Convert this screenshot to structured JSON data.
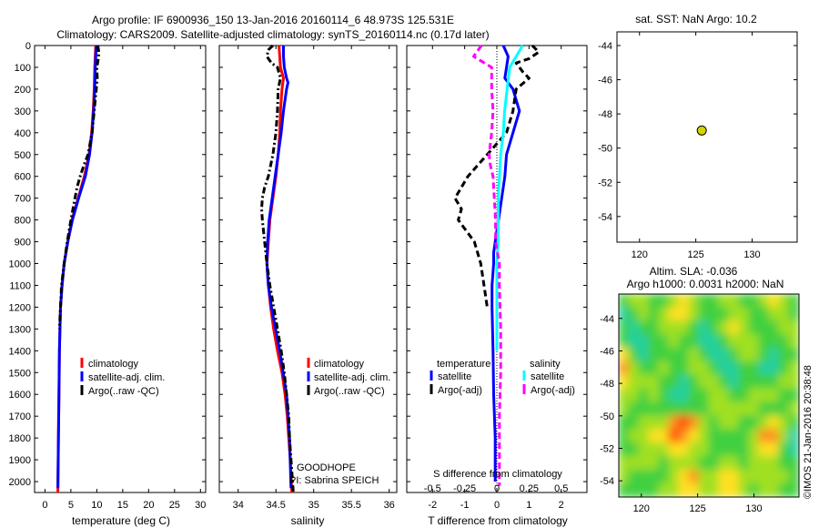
{
  "header": {
    "title_line1": "Argo profile: IF 6900936_150 13-Jan-2016 20160114_6 48.973S 125.531E",
    "title_line2": "Climatology: CARS2009. Satellite-adjusted climatology: synTS_20160114.nc (0.17d later)"
  },
  "side": {
    "sst_title": "sat. SST: NaN Argo: 10.2",
    "sla_line1": "Altim. SLA: -0.036",
    "sla_line2": "Argo h1000: 0.0031 h2000: NaN",
    "credit": "©IMOS 21-Jan-2016 20:38:48"
  },
  "annot": {
    "goodhope": "GOODHOPE",
    "pi": "PI: Sabrina SPEICH",
    "s_diff": "S difference from climatology"
  },
  "colors": {
    "climatology": "#ff0000",
    "satellite": "#0000ff",
    "argo": "#000000",
    "sal_sat": "#00ffff",
    "sal_argo": "#ff00ff"
  },
  "chart_data": [
    {
      "type": "line",
      "xlabel": "temperature (deg C)",
      "ylabel": "",
      "xlim": [
        -2,
        31
      ],
      "ylim": [
        2050,
        0
      ],
      "xticks": [
        0,
        5,
        10,
        15,
        20,
        25,
        30
      ],
      "yticks": [
        0,
        100,
        200,
        300,
        400,
        500,
        600,
        700,
        800,
        900,
        1000,
        1100,
        1200,
        1300,
        1400,
        1500,
        1600,
        1700,
        1800,
        1900,
        2000
      ],
      "legend": [
        "climatology",
        "satellite-adj. clim.",
        "Argo(..raw -QC)"
      ],
      "legend_location": "lower-center",
      "series": [
        {
          "name": "climatology",
          "color": "#ff0000",
          "style": "solid",
          "depth": [
            0,
            100,
            200,
            300,
            400,
            500,
            600,
            700,
            800,
            900,
            1000,
            1100,
            1200,
            1400,
            1600,
            1800,
            2050
          ],
          "values": [
            9.8,
            9.6,
            9.5,
            9.3,
            9.0,
            8.5,
            7.6,
            6.4,
            5.2,
            4.4,
            3.7,
            3.3,
            3.0,
            2.8,
            2.7,
            2.6,
            2.5
          ]
        },
        {
          "name": "satellite-adj. clim.",
          "color": "#0000ff",
          "style": "solid",
          "depth": [
            0,
            100,
            200,
            300,
            400,
            500,
            600,
            700,
            800,
            900,
            1000,
            1100,
            1200,
            1400,
            1600,
            1800,
            2030
          ],
          "values": [
            9.9,
            9.7,
            9.6,
            9.4,
            9.1,
            8.6,
            7.8,
            6.5,
            5.3,
            4.4,
            3.7,
            3.3,
            3.0,
            2.8,
            2.7,
            2.6,
            2.5
          ]
        },
        {
          "name": "Argo(..raw -QC)",
          "color": "#000000",
          "style": "dashdot",
          "depth": [
            0,
            30,
            60,
            100,
            150,
            200,
            300,
            400,
            500,
            550,
            600,
            650,
            700,
            800,
            900,
            1000,
            1100,
            1200,
            1300
          ],
          "values": [
            10.2,
            10.4,
            10.3,
            10.0,
            10.1,
            9.9,
            9.5,
            9.1,
            8.3,
            7.5,
            6.8,
            6.2,
            5.8,
            5.0,
            4.3,
            3.7,
            3.2,
            3.0,
            2.8
          ]
        }
      ]
    },
    {
      "type": "line",
      "xlabel": "salinity",
      "ylabel": "",
      "xlim": [
        33.75,
        36.1
      ],
      "ylim": [
        2050,
        0
      ],
      "xticks": [
        34,
        34.5,
        35,
        35.5,
        36
      ],
      "legend": [
        "climatology",
        "satellite-adj. clim.",
        "Argo(..raw -QC)"
      ],
      "legend_location": "lower-right",
      "series": [
        {
          "name": "climatology",
          "color": "#ff0000",
          "style": "solid",
          "depth": [
            0,
            50,
            100,
            150,
            200,
            300,
            400,
            500,
            600,
            700,
            800,
            900,
            1000,
            1100,
            1200,
            1300,
            1400,
            1500,
            1600,
            1700,
            1800,
            1900,
            2050
          ],
          "values": [
            34.54,
            34.55,
            34.56,
            34.6,
            34.58,
            34.56,
            34.55,
            34.53,
            34.5,
            34.46,
            34.42,
            34.4,
            34.38,
            34.4,
            34.43,
            34.47,
            34.52,
            34.58,
            34.62,
            34.65,
            34.67,
            34.69,
            34.71
          ]
        },
        {
          "name": "satellite-adj. clim.",
          "color": "#0000ff",
          "style": "solid",
          "depth": [
            0,
            50,
            100,
            150,
            170,
            200,
            300,
            400,
            500,
            600,
            700,
            800,
            900,
            1000,
            1100,
            1200,
            1400,
            1600,
            1800,
            2030
          ],
          "values": [
            34.6,
            34.6,
            34.61,
            34.64,
            34.66,
            34.64,
            34.6,
            34.57,
            34.53,
            34.49,
            34.45,
            34.41,
            34.39,
            34.38,
            34.4,
            34.44,
            34.55,
            34.64,
            34.68,
            34.7
          ]
        },
        {
          "name": "Argo(..raw -QC)",
          "color": "#000000",
          "style": "dashdot",
          "depth": [
            0,
            20,
            50,
            80,
            100,
            150,
            200,
            300,
            400,
            500,
            600,
            650,
            700,
            750,
            800,
            900,
            1000,
            1100,
            1200,
            1300,
            1400,
            1500,
            1600,
            1700,
            1800,
            1900,
            2050
          ],
          "values": [
            34.46,
            34.4,
            34.38,
            34.44,
            34.52,
            34.56,
            34.53,
            34.52,
            34.5,
            34.46,
            34.4,
            34.35,
            34.32,
            34.31,
            34.32,
            34.35,
            34.38,
            34.42,
            34.47,
            34.52,
            34.57,
            34.61,
            34.64,
            34.67,
            34.68,
            34.7,
            34.73
          ]
        }
      ]
    },
    {
      "type": "line",
      "xlabel": "T difference from climatology",
      "ylabel": "",
      "xlim": [
        -2.8,
        2.8
      ],
      "ylim": [
        2050,
        0
      ],
      "xticks": [
        -2,
        -1,
        0,
        1,
        2
      ],
      "top_axis_label": "S difference from climatology",
      "top_axis_ticks": [
        "-0.5",
        "-0.25",
        "0",
        "0.25",
        "0.5"
      ],
      "legend_title_left": "temperature",
      "legend_title_right": "salinity",
      "legend": [
        "satellite",
        "Argo(-adj)",
        "satellite",
        "Argo(-adj)"
      ],
      "legend_location": "lower-center",
      "series": [
        {
          "name": "satellite",
          "group": "temperature",
          "color": "#0000ff",
          "style": "solid",
          "depth": [
            0,
            50,
            100,
            150,
            200,
            300,
            400,
            500,
            600,
            700,
            800,
            900,
            950,
            1000,
            1100,
            1200,
            1400,
            1600,
            1800,
            2000
          ],
          "values": [
            0.2,
            0.35,
            0.3,
            0.25,
            0.5,
            0.7,
            0.5,
            0.3,
            0.25,
            0.15,
            0.05,
            -0.05,
            -0.1,
            -0.1,
            -0.15,
            -0.15,
            -0.12,
            -0.1,
            -0.05,
            -0.05
          ]
        },
        {
          "name": "Argo(-adj)",
          "group": "temperature",
          "color": "#000000",
          "style": "dashed",
          "depth": [
            0,
            30,
            60,
            80,
            120,
            150,
            200,
            300,
            400,
            500,
            550,
            600,
            650,
            700,
            750,
            800,
            900,
            1000,
            1100,
            1200
          ],
          "values": [
            1.1,
            1.3,
            1.0,
            0.6,
            0.8,
            1.0,
            0.6,
            0.5,
            0.3,
            -0.3,
            -0.6,
            -0.9,
            -1.1,
            -1.3,
            -1.1,
            -1.2,
            -0.7,
            -0.5,
            -0.4,
            -0.3
          ]
        },
        {
          "name": "satellite",
          "group": "salinity",
          "color": "#00ffff",
          "style": "solid",
          "depth": [
            0,
            50,
            100,
            200,
            300,
            400,
            500,
            600,
            700,
            800,
            900,
            1000,
            1100,
            1200,
            1400
          ],
          "values": [
            0.2,
            0.15,
            0.1,
            0.08,
            0.06,
            0.05,
            0.03,
            0.02,
            0.01,
            0.01,
            0.01,
            0.0,
            0.0,
            0.0,
            0.0
          ]
        },
        {
          "name": "Argo(-adj)",
          "group": "salinity",
          "color": "#ff00ff",
          "style": "dashed",
          "depth": [
            0,
            50,
            100,
            200,
            300,
            400,
            500,
            550,
            600,
            700,
            800,
            900,
            1000,
            1100,
            1300,
            1500,
            1700,
            1900,
            2020
          ],
          "values": [
            -0.12,
            -0.18,
            -0.04,
            -0.04,
            -0.03,
            -0.04,
            -0.06,
            -0.05,
            -0.03,
            -0.02,
            -0.01,
            -0.01,
            0.02,
            0.02,
            0.03,
            0.03,
            0.02,
            0.02,
            0.02
          ]
        }
      ]
    },
    {
      "type": "scatter",
      "title": "sat. SST: NaN Argo: 10.2",
      "xlim": [
        118,
        134
      ],
      "ylim": [
        -55.5,
        -43.2
      ],
      "xticks": [
        120,
        125,
        130
      ],
      "yticks": [
        -44,
        -46,
        -48,
        -50,
        -52,
        -54
      ],
      "points": [
        {
          "x": 125.53,
          "y": -48.97,
          "color": "#d4d400"
        }
      ]
    },
    {
      "type": "heatmap",
      "title": "Argo h1000: 0.0031 h2000: NaN",
      "xlim": [
        118,
        134
      ],
      "ylim": [
        -55,
        -42.5
      ],
      "xticks": [
        120,
        125,
        130
      ],
      "yticks": [
        -44,
        -46,
        -48,
        -50,
        -52,
        -54
      ],
      "colormap": [
        "#00c0e0",
        "#20d0a0",
        "#40d040",
        "#a0e020",
        "#ffe020",
        "#ff9020",
        "#ff4000"
      ],
      "field": [
        [
          2,
          3,
          3,
          2,
          2,
          3,
          4,
          3,
          2,
          2,
          3,
          3,
          2,
          2,
          3,
          4,
          3,
          2
        ],
        [
          1,
          2,
          3,
          2,
          3,
          4,
          4,
          3,
          2,
          2,
          2,
          3,
          3,
          2,
          2,
          3,
          3,
          2
        ],
        [
          2,
          1,
          2,
          2,
          3,
          3,
          3,
          2,
          1,
          2,
          3,
          4,
          3,
          2,
          2,
          2,
          3,
          3
        ],
        [
          2,
          1,
          1,
          2,
          2,
          3,
          2,
          2,
          1,
          1,
          2,
          3,
          3,
          3,
          2,
          2,
          2,
          3
        ],
        [
          4,
          2,
          1,
          2,
          2,
          2,
          2,
          3,
          2,
          1,
          1,
          2,
          3,
          3,
          2,
          1,
          2,
          2
        ],
        [
          5,
          3,
          2,
          2,
          3,
          2,
          2,
          3,
          3,
          2,
          1,
          1,
          2,
          2,
          1,
          1,
          2,
          3
        ],
        [
          4,
          3,
          3,
          3,
          2,
          2,
          1,
          2,
          3,
          3,
          2,
          1,
          2,
          2,
          2,
          2,
          3,
          3
        ],
        [
          3,
          3,
          2,
          3,
          2,
          1,
          1,
          2,
          2,
          3,
          3,
          2,
          2,
          3,
          3,
          3,
          2,
          2
        ],
        [
          3,
          2,
          2,
          2,
          2,
          2,
          2,
          2,
          2,
          3,
          3,
          3,
          3,
          3,
          2,
          2,
          2,
          3
        ],
        [
          2,
          2,
          3,
          3,
          3,
          5,
          6,
          5,
          3,
          2,
          3,
          3,
          2,
          2,
          3,
          4,
          3,
          2
        ],
        [
          2,
          3,
          3,
          4,
          4,
          6,
          5,
          4,
          3,
          2,
          2,
          2,
          2,
          3,
          5,
          5,
          3,
          1
        ],
        [
          2,
          2,
          3,
          3,
          3,
          4,
          4,
          3,
          3,
          2,
          2,
          2,
          2,
          3,
          4,
          4,
          2,
          1
        ],
        [
          3,
          3,
          3,
          3,
          2,
          3,
          3,
          3,
          2,
          2,
          3,
          3,
          2,
          3,
          3,
          3,
          2,
          2
        ],
        [
          3,
          2,
          2,
          2,
          2,
          3,
          4,
          5,
          3,
          3,
          4,
          4,
          3,
          3,
          3,
          3,
          3,
          2
        ],
        [
          2,
          2,
          2,
          2,
          3,
          3,
          4,
          4,
          3,
          3,
          4,
          4,
          3,
          2,
          3,
          3,
          2,
          2
        ]
      ]
    }
  ]
}
